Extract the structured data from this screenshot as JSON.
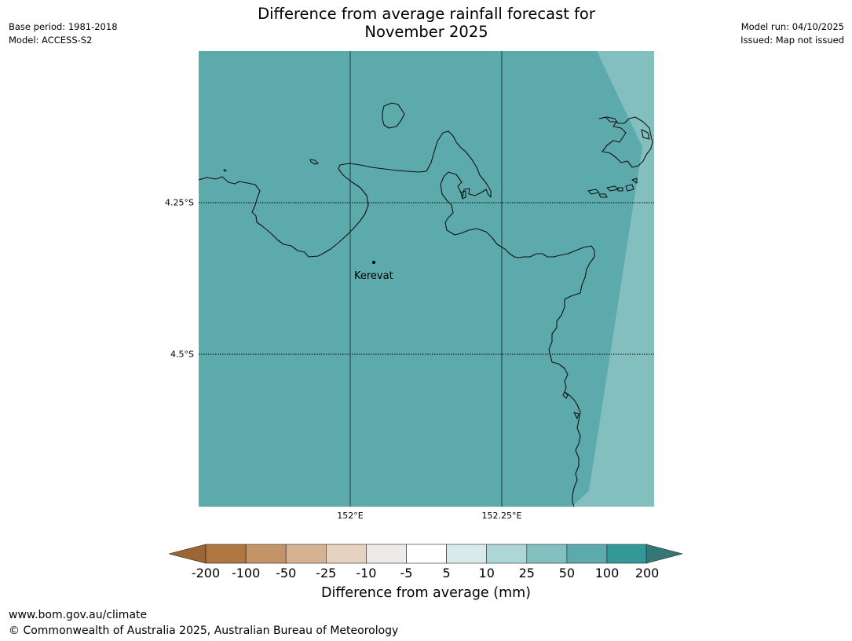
{
  "meta": {
    "base_period": "Base period: 1981-2018",
    "model": "Model: ACCESS-S2",
    "model_run": "Model run: 04/10/2025",
    "issued": "Issued: Map not issued"
  },
  "title": {
    "line1": "Difference from average rainfall forecast for",
    "line2": "November 2025"
  },
  "map": {
    "place_label": "Kerevat",
    "lat_labels": [
      "4.25°S",
      "4.5°S"
    ],
    "lon_labels": [
      "152°E",
      "152.25°E"
    ],
    "colors": {
      "main_fill": "#5caaac",
      "lighter_fill": "#84bfbf",
      "coastline": "#111111"
    }
  },
  "legend": {
    "label": "Difference from average (mm)",
    "ticks": [
      "-200",
      "-100",
      "-50",
      "-25",
      "-10",
      "-5",
      "5",
      "10",
      "25",
      "50",
      "100",
      "200"
    ],
    "colors": [
      "#9b6634",
      "#b07640",
      "#c39468",
      "#d4b293",
      "#e6d2c0",
      "#eeeae7",
      "#ffffff",
      "#d8eaea",
      "#afd6d6",
      "#84bfbf",
      "#5caaac",
      "#339998",
      "#347776"
    ]
  },
  "footer": {
    "url": "www.bom.gov.au/climate",
    "copyright": "© Commonwealth of Australia 2025, Australian Bureau of Meteorology"
  }
}
